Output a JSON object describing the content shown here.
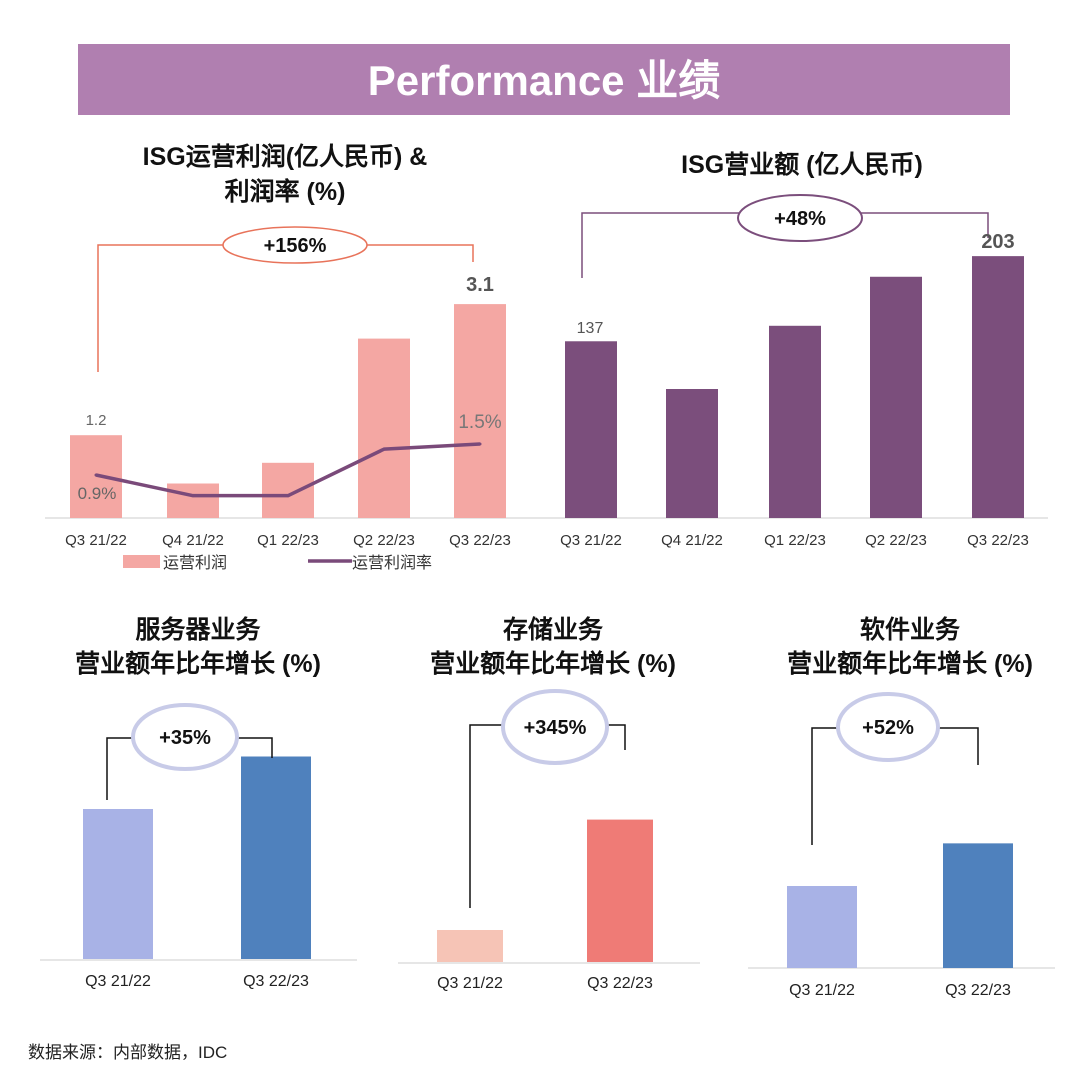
{
  "banner": {
    "title": "Performance 业绩",
    "color": "#b07fb0"
  },
  "chart_data": [
    {
      "type": "bar",
      "title_lines": [
        "ISG运营利润(亿人民币) &",
        "利润率 (%)"
      ],
      "categories": [
        "Q3 21/22",
        "Q4 21/22",
        "Q1 22/23",
        "Q2 22/23",
        "Q3 22/23"
      ],
      "series": [
        {
          "name": "运营利润",
          "type": "bar",
          "values": [
            1.2,
            0.5,
            0.8,
            2.6,
            3.1
          ],
          "color": "#f4a7a3"
        },
        {
          "name": "运营利润率",
          "type": "line",
          "values": [
            0.9,
            0.5,
            0.5,
            1.4,
            1.5
          ],
          "color": "#7a4a7a"
        }
      ],
      "data_labels": {
        "first_bar": "1.2",
        "last_bar": "3.1",
        "first_line": "0.9%",
        "last_line": "1.5%"
      },
      "growth": "+156%",
      "legend": "bottom",
      "grid": false
    },
    {
      "type": "bar",
      "title_lines": [
        "ISG营业额 (亿人民币)"
      ],
      "categories": [
        "Q3 21/22",
        "Q4 21/22",
        "Q1 22/23",
        "Q2 22/23",
        "Q3 22/23"
      ],
      "values": [
        137,
        100,
        149,
        187,
        203
      ],
      "color": "#7b4e7c",
      "data_labels": {
        "first": "137",
        "last": "203"
      },
      "growth": "+48%",
      "grid": false
    },
    {
      "type": "bar",
      "title_lines": [
        "服务器业务",
        "营业额年比年增长 (%)"
      ],
      "categories": [
        "Q3 21/22",
        "Q3 22/23"
      ],
      "values": [
        100,
        135
      ],
      "colors": [
        "#a8b2e6",
        "#4f81bd"
      ],
      "growth": "+35%"
    },
    {
      "type": "bar",
      "title_lines": [
        "存储业务",
        "营业额年比年增长 (%)"
      ],
      "categories": [
        "Q3 21/22",
        "Q3 22/23"
      ],
      "values": [
        100,
        445
      ],
      "colors": [
        "#f6c4b6",
        "#ef7b76"
      ],
      "growth": "+345%"
    },
    {
      "type": "bar",
      "title_lines": [
        "软件业务",
        "营业额年比年增长 (%)"
      ],
      "categories": [
        "Q3 21/22",
        "Q3 22/23"
      ],
      "values": [
        100,
        152
      ],
      "colors": [
        "#a8b2e6",
        "#4f81bd"
      ],
      "growth": "+52%"
    }
  ],
  "footer": {
    "source": "数据来源：内部数据，IDC"
  }
}
